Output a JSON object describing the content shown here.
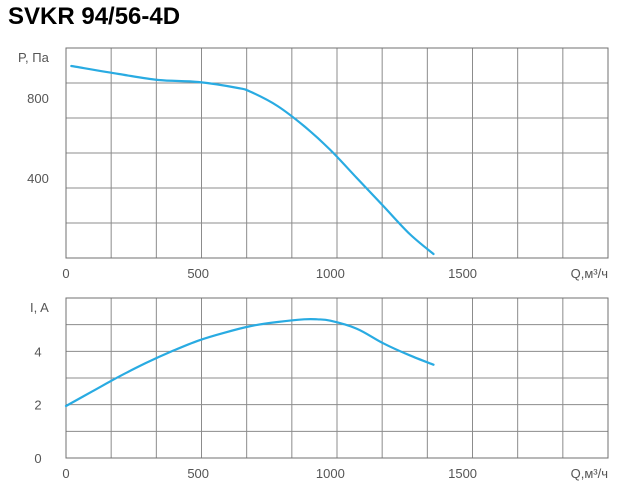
{
  "title": "SVKR 94/56-4D",
  "colors": {
    "curve": "#29abe2",
    "grid": "#8c8c8c",
    "frame": "#707070",
    "text": "#555555"
  },
  "chart_data": [
    {
      "type": "line",
      "ylabel": "P, Па",
      "xlabel": "Q,м³/ч",
      "xlim": [
        0,
        2050
      ],
      "ylim": [
        0,
        1050
      ],
      "x_ticks": [
        "0",
        "500",
        "1000",
        "1500"
      ],
      "y_ticks": [
        "400",
        "800"
      ],
      "grid": true,
      "series": [
        {
          "x": [
            20,
            200,
            350,
            500,
            650,
            700,
            800,
            900,
            1000,
            1100,
            1200,
            1300,
            1390
          ],
          "y": [
            960,
            920,
            890,
            880,
            850,
            830,
            760,
            660,
            540,
            400,
            260,
            120,
            20
          ]
        }
      ]
    },
    {
      "type": "line",
      "ylabel": "I, A",
      "xlabel": "Q,м³/ч",
      "xlim": [
        0,
        2050
      ],
      "ylim": [
        0,
        6
      ],
      "x_ticks": [
        "0",
        "500",
        "1000",
        "1500"
      ],
      "y_ticks": [
        "0",
        "2",
        "4"
      ],
      "grid": true,
      "series": [
        {
          "x": [
            0,
            100,
            200,
            300,
            400,
            500,
            600,
            700,
            800,
            900,
            950,
            1000,
            1100,
            1200,
            1300,
            1390
          ],
          "y": [
            1.95,
            2.5,
            3.05,
            3.55,
            4.0,
            4.4,
            4.7,
            4.95,
            5.1,
            5.2,
            5.2,
            5.15,
            4.85,
            4.3,
            3.85,
            3.5
          ]
        }
      ]
    }
  ]
}
